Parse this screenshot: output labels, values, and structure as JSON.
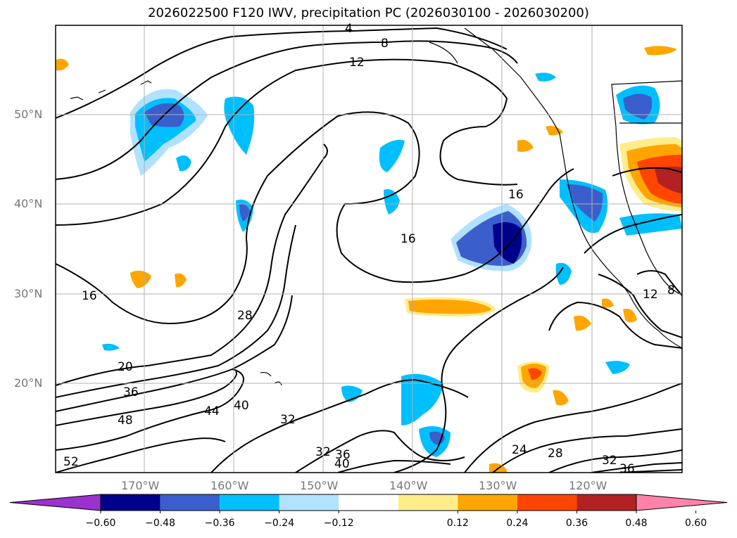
{
  "title": "2026022500 F120 IWV, precipitation PC (2026030100 - 2026030200)",
  "lat_labels": [
    "50°N",
    "40°N",
    "30°N",
    "20°N"
  ],
  "lon_labels": [
    "170°W",
    "160°W",
    "150°W",
    "140°W",
    "130°W",
    "120°W"
  ],
  "contour_labels": [
    "4",
    "8",
    "12",
    "16",
    "16",
    "16",
    "28",
    "20",
    "36",
    "48",
    "44",
    "40",
    "32",
    "32",
    "36",
    "40",
    "52",
    "24",
    "28",
    "32",
    "36",
    "12",
    "8"
  ],
  "colorbar": {
    "ticks": [
      "−0.60",
      "−0.48",
      "−0.36",
      "−0.24",
      "−0.12",
      "0.12",
      "0.24",
      "0.36",
      "0.48",
      "0.60"
    ],
    "colors": [
      "#9a32cd",
      "#00008b",
      "#3a5fcd",
      "#00bfff",
      "#b0e2ff",
      "#ffffff",
      "#ffec8b",
      "#ffa500",
      "#ff4500",
      "#b22222",
      "#ff82ab"
    ]
  },
  "colors": {
    "neg_strong": "#00008b",
    "neg_med": "#3a5fcd",
    "neg_light": "#00bfff",
    "neg_faint": "#b0e2ff",
    "pos_faint": "#ffec8b",
    "pos_med": "#ffa500",
    "pos_strong": "#ff4500",
    "pos_dark": "#b22222"
  }
}
